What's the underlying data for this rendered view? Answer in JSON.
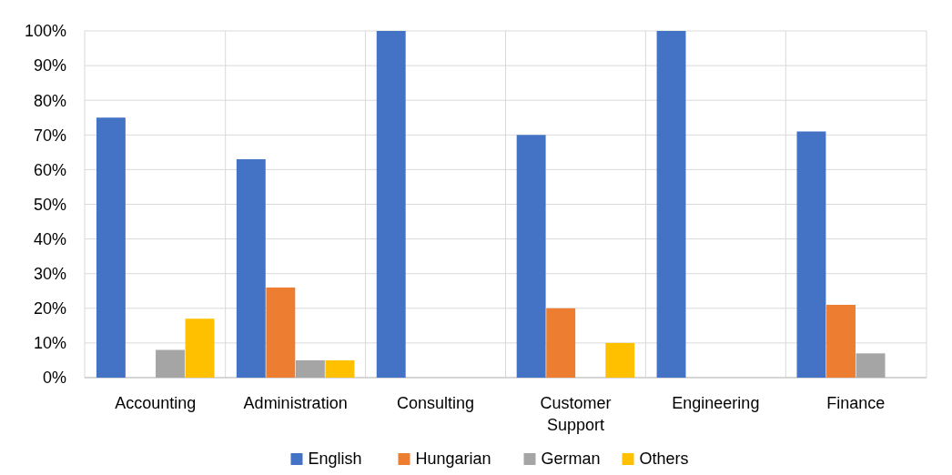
{
  "chart_data": {
    "type": "bar",
    "categories": [
      "Accounting",
      "Administration",
      "Consulting",
      "Customer Support",
      "Engineering",
      "Finance"
    ],
    "series": [
      {
        "name": "English",
        "color": "#4472c4",
        "values": [
          75,
          63,
          100,
          70,
          100,
          71
        ]
      },
      {
        "name": "Hungarian",
        "color": "#ed7d31",
        "values": [
          null,
          26,
          null,
          20,
          null,
          21
        ]
      },
      {
        "name": "German",
        "color": "#a5a5a5",
        "values": [
          8,
          5,
          null,
          null,
          null,
          7
        ]
      },
      {
        "name": "Others",
        "color": "#ffc000",
        "values": [
          17,
          5,
          null,
          10,
          null,
          null
        ]
      }
    ],
    "ylim": [
      0,
      100
    ],
    "yticks": [
      {
        "value": 0,
        "label": "0%"
      },
      {
        "value": 10,
        "label": "10%"
      },
      {
        "value": 20,
        "label": "20%"
      },
      {
        "value": 30,
        "label": "30%"
      },
      {
        "value": 40,
        "label": "40%"
      },
      {
        "value": 50,
        "label": "50%"
      },
      {
        "value": 60,
        "label": "60%"
      },
      {
        "value": 70,
        "label": "70%"
      },
      {
        "value": 80,
        "label": "80%"
      },
      {
        "value": 90,
        "label": "90%"
      },
      {
        "value": 100,
        "label": "100%"
      }
    ],
    "grid": true,
    "legend": "bottom"
  }
}
